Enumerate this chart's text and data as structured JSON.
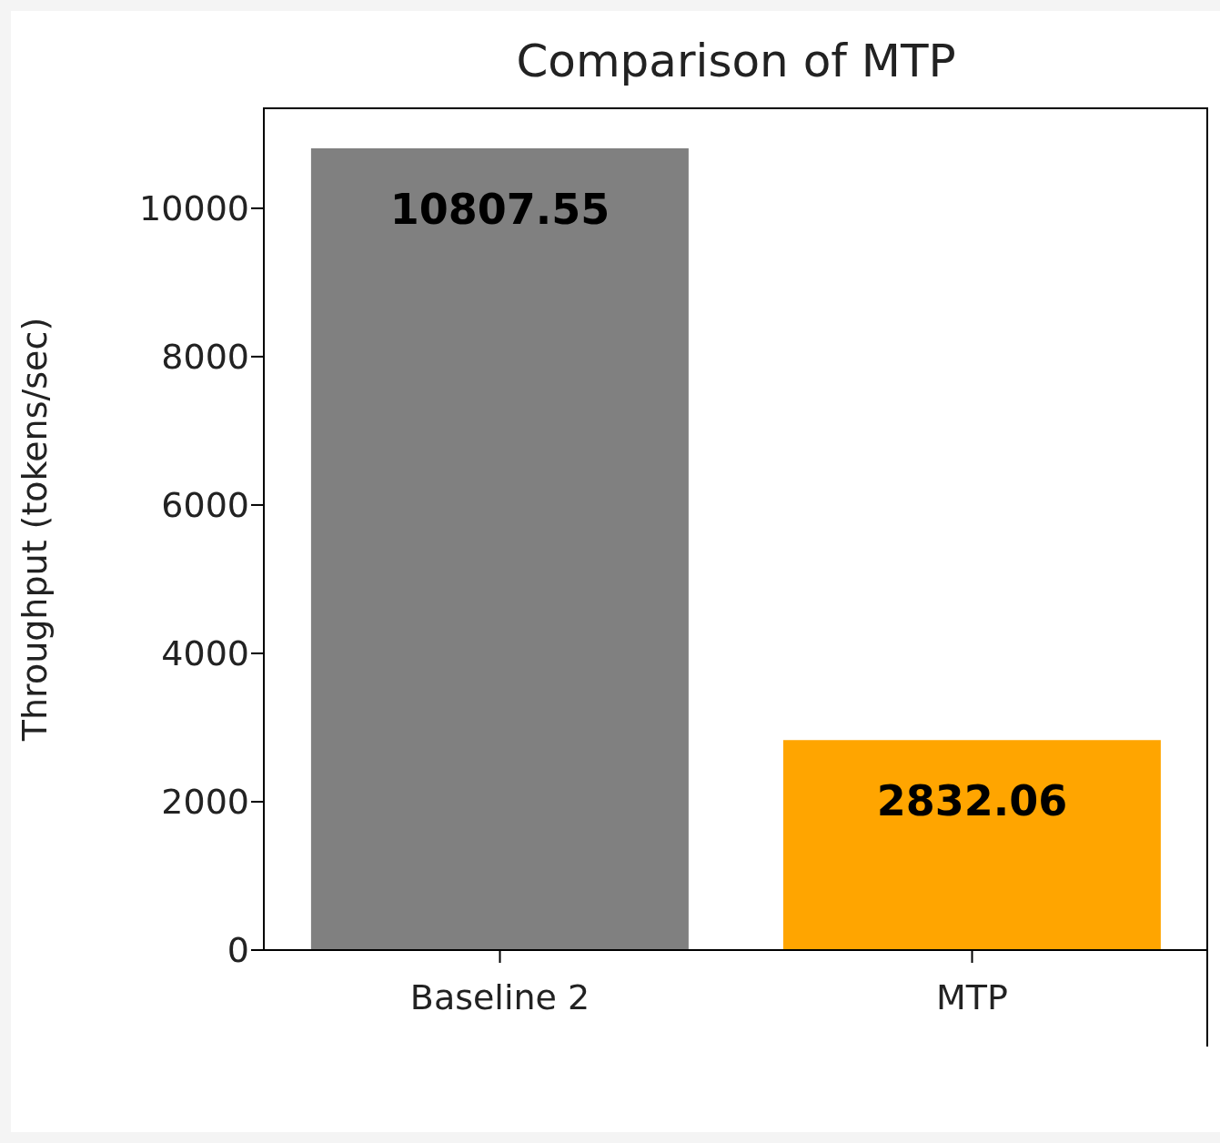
{
  "chart_data": {
    "type": "bar",
    "title": "Comparison of MTP",
    "ylabel": "Throughput (tokens/sec)",
    "categories": [
      "Baseline 2",
      "MTP"
    ],
    "values": [
      10807.55,
      2832.06
    ],
    "colors": [
      "#808080",
      "#ffa500"
    ],
    "ylim": [
      0,
      11348
    ],
    "yticks": [
      0,
      2000,
      4000,
      6000,
      8000,
      10000
    ],
    "grid": false,
    "legend": false,
    "data_labels": true
  }
}
